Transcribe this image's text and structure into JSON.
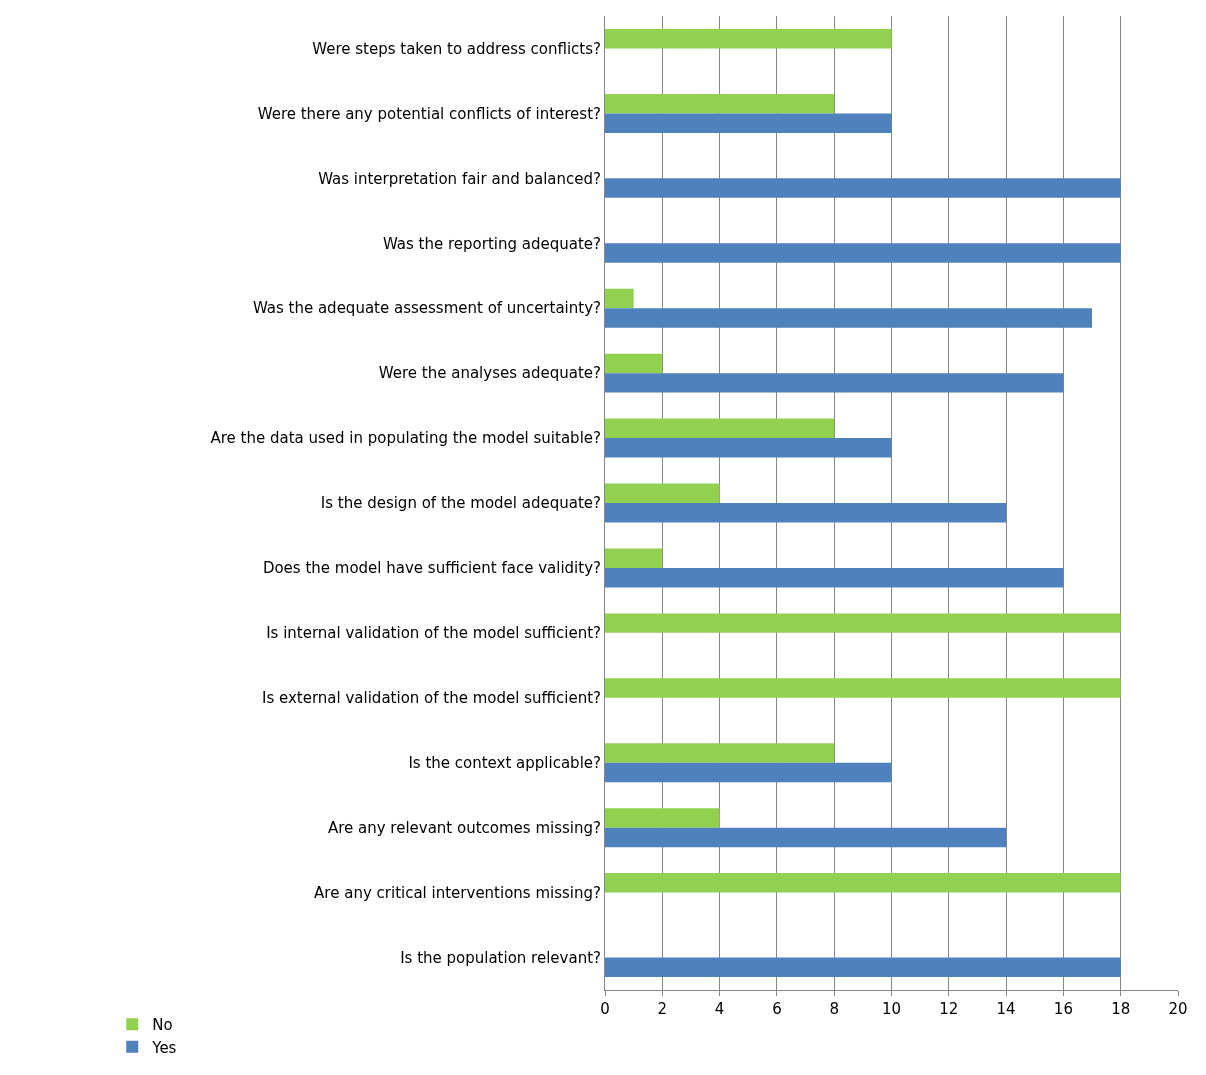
{
  "chart_data": {
    "type": "bar",
    "orientation": "horizontal",
    "categories": [
      "Were steps taken to address conflicts?",
      "Were there any potential conflicts of interest?",
      "Was interpretation fair and balanced?",
      "Was the reporting adequate?",
      "Was the adequate assessment of uncertainty?",
      "Were the analyses adequate?",
      "Are the data used in populating the model suitable?",
      "Is the design of the model adequate?",
      "Does the model have sufficient face validity?",
      "Is internal validation of the model sufficient?",
      "Is external validation of the model sufficient?",
      "Is the context applicable?",
      "Are any relevant outcomes missing?",
      "Are any critical interventions missing?",
      "Is the population relevant?"
    ],
    "series": [
      {
        "name": "No",
        "color": "#92d050",
        "values": [
          10,
          8,
          null,
          null,
          1,
          2,
          8,
          4,
          2,
          18,
          18,
          8,
          4,
          18,
          null
        ]
      },
      {
        "name": "Yes",
        "color": "#4f81bd",
        "values": [
          null,
          10,
          18,
          18,
          17,
          16,
          10,
          14,
          16,
          null,
          null,
          10,
          14,
          null,
          18
        ]
      }
    ],
    "xlim": [
      0,
      20
    ],
    "xticks": [
      0,
      2,
      4,
      6,
      8,
      10,
      12,
      14,
      16,
      18,
      20
    ],
    "grid": "x",
    "legend": "bottom left"
  }
}
